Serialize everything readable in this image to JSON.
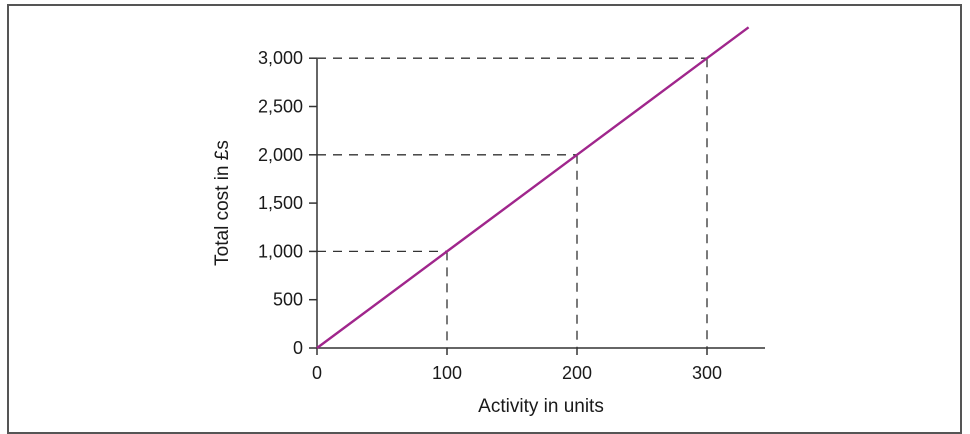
{
  "chart_data": {
    "type": "line",
    "title": "",
    "xlabel": "Activity in units",
    "ylabel": "Total cost in £s",
    "xlim": [
      0,
      345
    ],
    "ylim": [
      0,
      3000
    ],
    "x_ticks": [
      0,
      100,
      200,
      300
    ],
    "x_tick_labels": [
      "0",
      "100",
      "200",
      "300"
    ],
    "y_ticks": [
      0,
      500,
      1000,
      1500,
      2000,
      2500,
      3000
    ],
    "y_tick_labels": [
      "0",
      "500",
      "1,000",
      "1,500",
      "2,000",
      "2,500",
      "3,000"
    ],
    "series": [
      {
        "x": [
          0,
          100,
          200,
          300,
          332
        ],
        "y": [
          0,
          1000,
          2000,
          3000,
          3320
        ]
      }
    ],
    "reference_points": [
      {
        "x": 100,
        "y": 1000
      },
      {
        "x": 200,
        "y": 2000
      },
      {
        "x": 300,
        "y": 3000
      }
    ],
    "line_color": "#a0268c",
    "reference_line_style": "dashed",
    "grid": false,
    "legend": "none"
  }
}
